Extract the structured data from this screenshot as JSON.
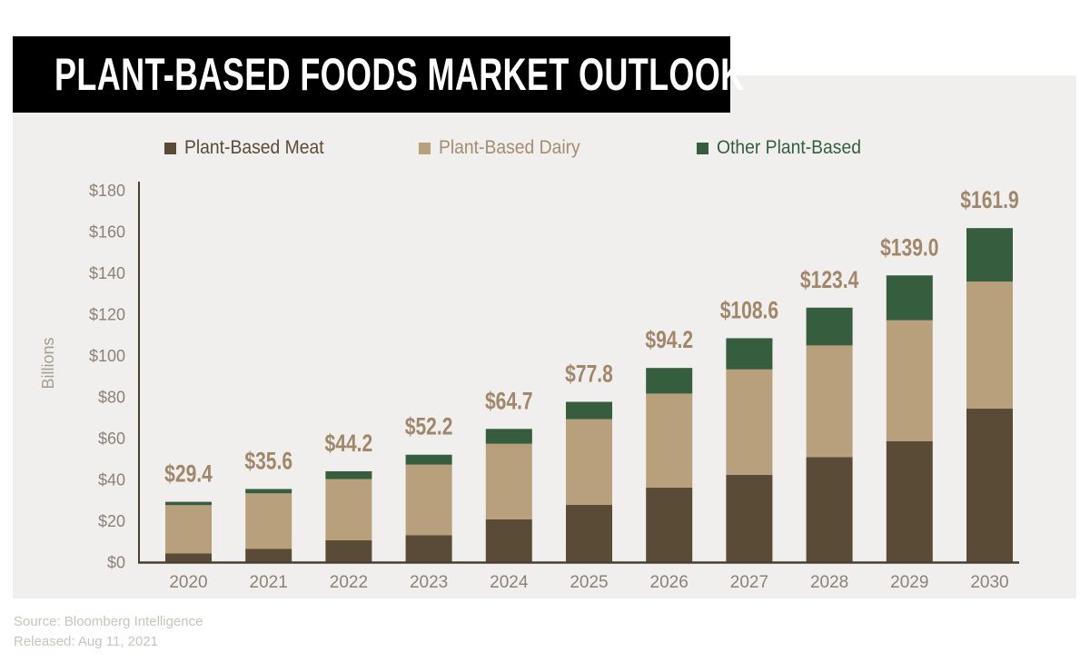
{
  "chart_data": {
    "type": "bar",
    "stacked": true,
    "title": "PLANT-BASED FOODS MARKET OUTLOOK",
    "xlabel": "",
    "ylabel": "Billions",
    "ylim": [
      0,
      180
    ],
    "yticks": [
      0,
      20,
      40,
      60,
      80,
      100,
      120,
      140,
      160,
      180
    ],
    "ytick_labels": [
      "$0",
      "$20",
      "$40",
      "$60",
      "$80",
      "$100",
      "$120",
      "$140",
      "$160",
      "$180"
    ],
    "grid": false,
    "legend_position": "top",
    "categories": [
      "2020",
      "2021",
      "2022",
      "2023",
      "2024",
      "2025",
      "2026",
      "2027",
      "2028",
      "2029",
      "2030"
    ],
    "series": [
      {
        "name": "Plant-Based Meat",
        "color": "#5A4B36",
        "label_color": "#5A4B36",
        "values": [
          4.5,
          6.7,
          10.8,
          13.3,
          20.9,
          27.9,
          36.3,
          42.5,
          51.1,
          58.8,
          74.5
        ]
      },
      {
        "name": "Plant-Based Dairy",
        "color": "#B9A07C",
        "label_color": "#A38C71",
        "values": [
          23.3,
          26.8,
          29.6,
          34.1,
          36.6,
          41.5,
          45.5,
          51.0,
          54.0,
          58.5,
          61.5
        ]
      },
      {
        "name": "Other Plant-Based",
        "color": "#365D3D",
        "label_color": "#365D3D",
        "values": [
          1.6,
          2.1,
          3.8,
          4.8,
          7.2,
          8.4,
          12.4,
          15.1,
          18.3,
          21.7,
          25.9
        ]
      }
    ],
    "totals": [
      29.4,
      35.6,
      44.2,
      52.2,
      64.7,
      77.8,
      94.2,
      108.6,
      123.4,
      139.0,
      161.9
    ],
    "total_labels": [
      "$29.4",
      "$35.6",
      "$44.2",
      "$52.2",
      "$64.7",
      "$77.8",
      "$94.2",
      "$108.6",
      "$123.4",
      "$139.0",
      "$161.9"
    ]
  },
  "footer": {
    "source": "Source: Bloomberg Intelligence",
    "released": "Released: Aug 11, 2021"
  }
}
